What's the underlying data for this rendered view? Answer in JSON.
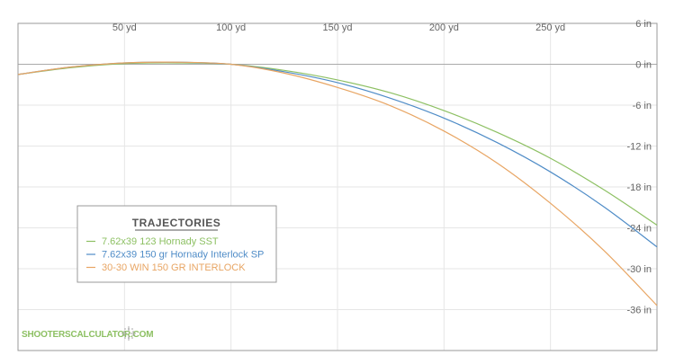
{
  "chart_data": {
    "type": "line",
    "x_unit": "yd",
    "y_unit": "in",
    "xlim": [
      0,
      300
    ],
    "ylim": [
      -42,
      6
    ],
    "x_ticks": [
      50,
      100,
      150,
      200,
      250
    ],
    "x_tick_labels": [
      "50 yd",
      "100 yd",
      "150 yd",
      "200 yd",
      "250 yd"
    ],
    "y_ticks": [
      6,
      0,
      -6,
      -12,
      -18,
      -24,
      -30,
      -36
    ],
    "y_tick_labels": [
      "6 in",
      "0 in",
      "-6 in",
      "-12 in",
      "-18 in",
      "-24 in",
      "-30 in",
      "-36 in"
    ],
    "grid": true,
    "legend_title": "TRAJECTORIES",
    "legend_position": "lower-left",
    "series": [
      {
        "name": "7.62x39 123 Hornady SST",
        "color": "#8dc063",
        "x": [
          0,
          25,
          50,
          75,
          100,
          125,
          150,
          175,
          200,
          225,
          250,
          275,
          300
        ],
        "y": [
          -1.5,
          -0.5,
          0.1,
          0.2,
          0,
          -0.9,
          -2.3,
          -4.2,
          -6.8,
          -10.0,
          -13.8,
          -18.4,
          -23.6
        ]
      },
      {
        "name": "7.62x39 150 gr Hornady Interlock SP",
        "color": "#4f8cc7",
        "x": [
          0,
          25,
          50,
          75,
          100,
          125,
          150,
          175,
          200,
          225,
          250,
          275,
          300
        ],
        "y": [
          -1.5,
          -0.4,
          0.2,
          0.3,
          0,
          -1.1,
          -2.7,
          -5.0,
          -7.9,
          -11.5,
          -15.8,
          -20.9,
          -26.8
        ]
      },
      {
        "name": "30-30 WIN 150 GR INTERLOCK",
        "color": "#e8a563",
        "x": [
          0,
          25,
          50,
          75,
          100,
          125,
          150,
          175,
          200,
          225,
          250,
          275,
          300
        ],
        "y": [
          -1.5,
          -0.4,
          0.2,
          0.3,
          0,
          -1.3,
          -3.4,
          -6.1,
          -9.8,
          -14.5,
          -20.4,
          -27.3,
          -35.4
        ]
      }
    ]
  },
  "watermark": {
    "text": "SHOOTERSCALCULATOR.COM",
    "color": "#8dc063",
    "icon": "crosshair-icon"
  }
}
